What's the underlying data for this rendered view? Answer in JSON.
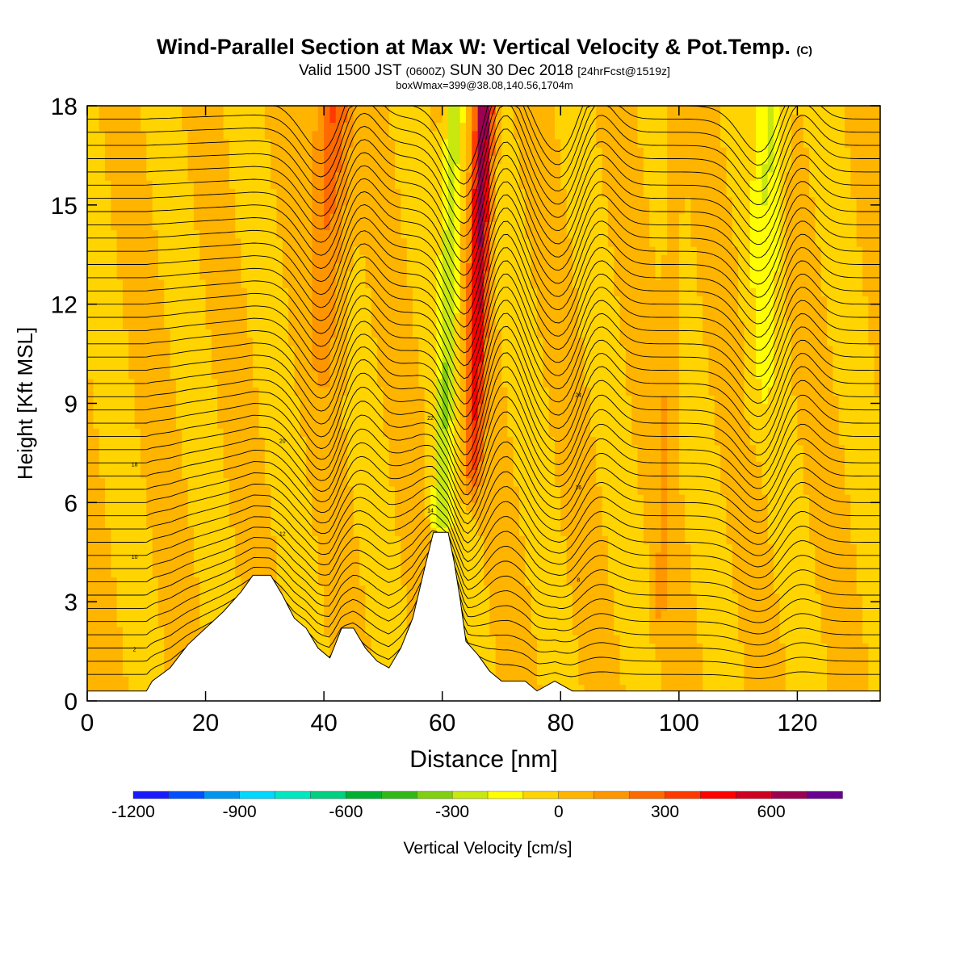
{
  "title": {
    "main": "Wind-Parallel Section at Max W: Vertical Velocity & Pot.Temp.",
    "copyright": "(C)",
    "valid_prefix": "Valid 1500 JST",
    "valid_z": "(0600Z)",
    "valid_date": "SUN 30 Dec 2018",
    "forecast": "[24hrFcst@1519z]",
    "box": "boxWmax=399@38.08,140.56,1704m"
  },
  "chart_data": {
    "type": "heatmap",
    "xlabel": "Distance [nm]",
    "ylabel": "Height [Kft MSL]",
    "xlim": [
      0,
      134
    ],
    "ylim": [
      0,
      18
    ],
    "x_ticks": [
      "0",
      "20",
      "40",
      "60",
      "80",
      "100",
      "120"
    ],
    "y_ticks": [
      "0",
      "3",
      "6",
      "9",
      "12",
      "15",
      "18"
    ],
    "colorbar": {
      "label": "Vertical Velocity [cm/s]",
      "tick_labels": [
        "-1200",
        "-900",
        "-600",
        "-300",
        "0",
        "300",
        "600"
      ],
      "levels_min": -1200,
      "level_step": 100,
      "colors": [
        "#1a1aff",
        "#0050ff",
        "#0096f0",
        "#00d8ff",
        "#00e8c0",
        "#00d080",
        "#00b030",
        "#30b818",
        "#80d010",
        "#c8e810",
        "#ffff00",
        "#ffd400",
        "#ffb400",
        "#ff9600",
        "#ff6a00",
        "#ff3a00",
        "#ff0000",
        "#d00020",
        "#9c0050",
        "#6a0090"
      ]
    },
    "background_level": 0,
    "vertical_velocity_cores": [
      {
        "x": 65.5,
        "half_width": 1.6,
        "w_top": 750,
        "w_bottom": 300,
        "from_y": 6.5
      },
      {
        "x": 60.5,
        "half_width": 1.6,
        "w_top": -300,
        "w_bottom": -250,
        "from_y": 5.0
      },
      {
        "x": 40,
        "half_width": 3,
        "w_top": 350,
        "w_bottom": 50,
        "from_y": 9
      },
      {
        "x": 114,
        "half_width": 2.5,
        "w_top": -250,
        "w_bottom": -50,
        "from_y": 8
      },
      {
        "x": 98,
        "half_width": 1.2,
        "w_top": 100,
        "w_bottom": 100,
        "from_y": 2
      }
    ],
    "terrain_kft": [
      [
        0,
        0.3
      ],
      [
        10,
        0.3
      ],
      [
        11,
        0.6
      ],
      [
        14,
        1.0
      ],
      [
        17,
        1.7
      ],
      [
        20,
        2.2
      ],
      [
        23,
        2.7
      ],
      [
        26,
        3.3
      ],
      [
        28,
        3.8
      ],
      [
        31,
        3.8
      ],
      [
        33,
        3.2
      ],
      [
        35,
        2.5
      ],
      [
        37,
        2.2
      ],
      [
        39,
        1.6
      ],
      [
        41,
        1.3
      ],
      [
        43,
        2.2
      ],
      [
        45,
        2.2
      ],
      [
        47,
        1.6
      ],
      [
        49,
        1.2
      ],
      [
        51,
        1.0
      ],
      [
        53,
        1.6
      ],
      [
        55,
        2.5
      ],
      [
        57,
        4.0
      ],
      [
        58.5,
        5.1
      ],
      [
        61,
        5.1
      ],
      [
        62,
        4.2
      ],
      [
        63,
        3.1
      ],
      [
        64,
        1.8
      ],
      [
        66,
        1.4
      ],
      [
        68,
        0.9
      ],
      [
        70,
        0.6
      ],
      [
        74,
        0.6
      ],
      [
        76,
        0.3
      ],
      [
        79,
        0.6
      ],
      [
        82,
        0.3
      ],
      [
        134,
        0.3
      ]
    ],
    "theta_contour_labels": [
      "2",
      "4",
      "6",
      "8",
      "10",
      "12",
      "14",
      "16",
      "18",
      "20",
      "22",
      "24"
    ]
  }
}
